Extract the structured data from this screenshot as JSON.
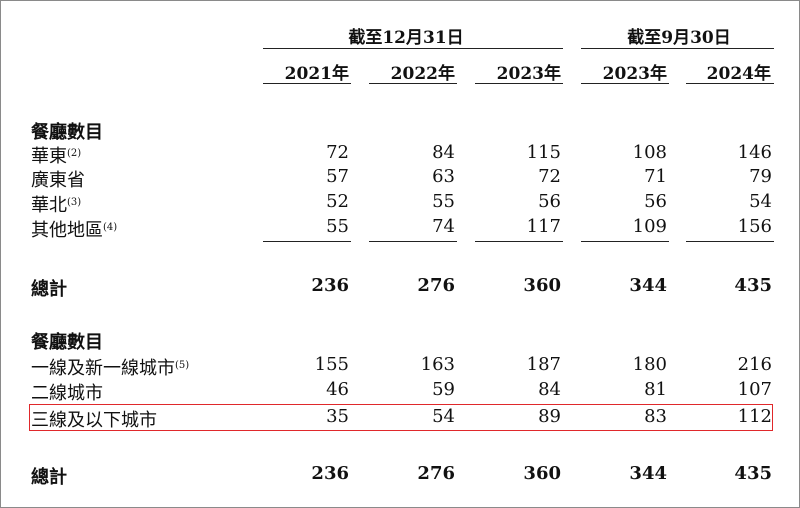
{
  "header": {
    "group_1": "截至12月31日",
    "group_2": "截至9月30日",
    "years": [
      "2021年",
      "2022年",
      "2023年",
      "2023年",
      "2024年"
    ]
  },
  "section_1": {
    "title": "餐廳數目",
    "rows": [
      {
        "label": "華東",
        "note": "(2)",
        "values": [
          "72",
          "84",
          "115",
          "108",
          "146"
        ]
      },
      {
        "label": "廣東省",
        "note": "",
        "values": [
          "57",
          "63",
          "72",
          "71",
          "79"
        ]
      },
      {
        "label": "華北",
        "note": "(3)",
        "values": [
          "52",
          "55",
          "56",
          "56",
          "54"
        ]
      },
      {
        "label": "其他地區",
        "note": "(4)",
        "values": [
          "55",
          "74",
          "117",
          "109",
          "156"
        ]
      }
    ],
    "total": {
      "label": "總計",
      "values": [
        "236",
        "276",
        "360",
        "344",
        "435"
      ]
    }
  },
  "section_2": {
    "title": "餐廳數目",
    "rows": [
      {
        "label": "一線及新一線城市",
        "note": "(5)",
        "values": [
          "155",
          "163",
          "187",
          "180",
          "216"
        ]
      },
      {
        "label": "二線城市",
        "note": "",
        "values": [
          "46",
          "59",
          "84",
          "81",
          "107"
        ]
      },
      {
        "label": "三線及以下城市",
        "note": "",
        "values": [
          "35",
          "54",
          "89",
          "83",
          "112"
        ]
      }
    ],
    "total": {
      "label": "總計",
      "values": [
        "236",
        "276",
        "360",
        "344",
        "435"
      ]
    }
  },
  "colors": {
    "highlight_border": "#e0282b",
    "text": "#111111"
  }
}
